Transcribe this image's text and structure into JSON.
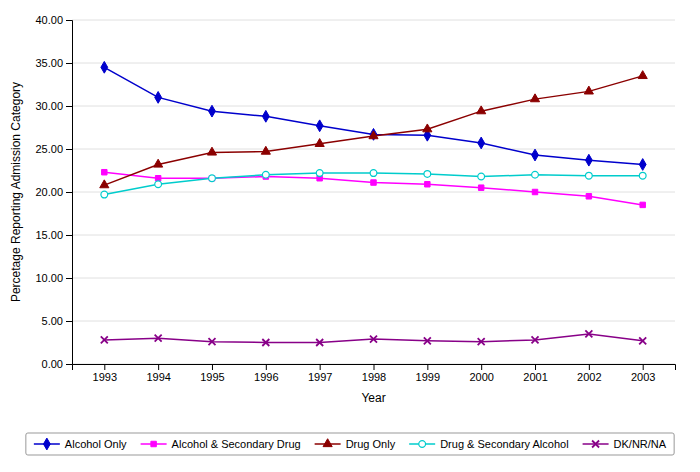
{
  "chart_data": {
    "type": "line",
    "x": [
      1993,
      1994,
      1995,
      1996,
      1997,
      1998,
      1999,
      2000,
      2001,
      2002,
      2003
    ],
    "xlim": [
      1992.4,
      2003.6
    ],
    "xticks": [
      1993,
      1994,
      1995,
      1996,
      1997,
      1998,
      1999,
      2000,
      2001,
      2002,
      2003
    ],
    "ylim": [
      0.0,
      40.0
    ],
    "yticks": [
      {
        "value": 0.0,
        "label": "0.00"
      },
      {
        "value": 5.0,
        "label": "5.00"
      },
      {
        "value": 10.0,
        "label": "10.00"
      },
      {
        "value": 15.0,
        "label": "15.00"
      },
      {
        "value": 20.0,
        "label": "20.00"
      },
      {
        "value": 25.0,
        "label": "25.00"
      },
      {
        "value": 30.0,
        "label": "30.00"
      },
      {
        "value": 35.0,
        "label": "35.00"
      },
      {
        "value": 40.0,
        "label": "40.00"
      }
    ],
    "x_label": "Year",
    "y_label": "Percetage Reporting Admission Category",
    "grid": "y",
    "legend": "bottom",
    "series": [
      {
        "name": "Alcohol Only",
        "color": "#0000CC",
        "marker": "diamond",
        "values": [
          34.5,
          31.0,
          29.4,
          28.8,
          27.7,
          26.7,
          26.6,
          25.7,
          24.3,
          23.7,
          23.2
        ]
      },
      {
        "name": "Alcohol & Secondary Drug",
        "color": "#FF00FF",
        "marker": "square",
        "values": [
          22.3,
          21.6,
          21.6,
          21.8,
          21.6,
          21.1,
          20.9,
          20.5,
          20.0,
          19.5,
          18.5
        ]
      },
      {
        "name": "Drug Only",
        "color": "#8B0000",
        "marker": "triangle",
        "values": [
          20.8,
          23.2,
          24.6,
          24.7,
          25.6,
          26.5,
          27.3,
          29.4,
          30.8,
          31.7,
          33.5
        ]
      },
      {
        "name": "Drug & Secondary Alcohol",
        "color": "#00CCCC",
        "marker": "circle-open",
        "values": [
          19.7,
          20.9,
          21.6,
          22.0,
          22.2,
          22.2,
          22.1,
          21.8,
          22.0,
          21.9,
          21.9
        ]
      },
      {
        "name": "DK/NR/NA",
        "color": "#880088",
        "marker": "x",
        "values": [
          2.8,
          3.0,
          2.6,
          2.5,
          2.5,
          2.9,
          2.7,
          2.6,
          2.8,
          3.5,
          2.7
        ]
      }
    ]
  }
}
